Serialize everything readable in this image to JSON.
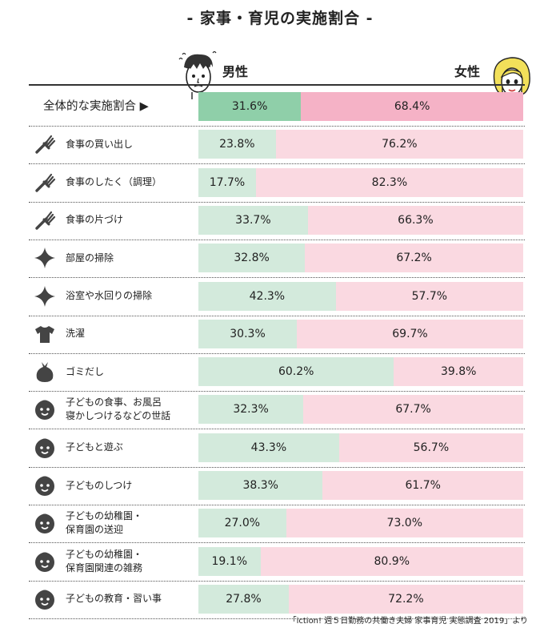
{
  "title": "- 家事・育児の実施割合 -",
  "legend": {
    "male": "男性",
    "female": "女性"
  },
  "source": "「iction! 週５日勤務の共働き夫婦 家事育児 実態調査 2019」より",
  "colors": {
    "overall_male": "#8fcfa9",
    "overall_female": "#f5b2c6",
    "male": "#d3eadc",
    "female": "#fad9e1"
  },
  "chart_data": {
    "type": "bar",
    "stacked": true,
    "orientation": "horizontal",
    "categories": [
      "全体的な実施割合 ▶",
      "食事の買い出し",
      "食事のしたく（調理）",
      "食事の片づけ",
      "部屋の掃除",
      "浴室や水回りの掃除",
      "洗濯",
      "ゴミだし",
      "子どもの食事、お風呂\n寝かしつけるなどの世話",
      "子どもと遊ぶ",
      "子どものしつけ",
      "子どもの幼稚園・\n保育園の送迎",
      "子どもの幼稚園・\n保育園関連の雑務",
      "子どもの教育・習い事"
    ],
    "icons": [
      "none",
      "fork-icon",
      "fork-icon",
      "fork-icon",
      "sparkle-icon",
      "sparkle-icon",
      "shirt-icon",
      "garbage-bag-icon",
      "child-face-icon",
      "child-face-icon",
      "child-face-icon",
      "child-face-icon",
      "child-face-icon",
      "child-face-icon"
    ],
    "series": [
      {
        "name": "男性",
        "values": [
          31.6,
          23.8,
          17.7,
          33.7,
          32.8,
          42.3,
          30.3,
          60.2,
          32.3,
          43.3,
          38.3,
          27.0,
          19.1,
          27.8
        ]
      },
      {
        "name": "女性",
        "values": [
          68.4,
          76.2,
          82.3,
          66.3,
          67.2,
          57.7,
          69.7,
          39.8,
          67.7,
          56.7,
          61.7,
          73.0,
          80.9,
          72.2
        ]
      }
    ],
    "xlim": [
      0,
      100
    ],
    "unit": "%"
  }
}
